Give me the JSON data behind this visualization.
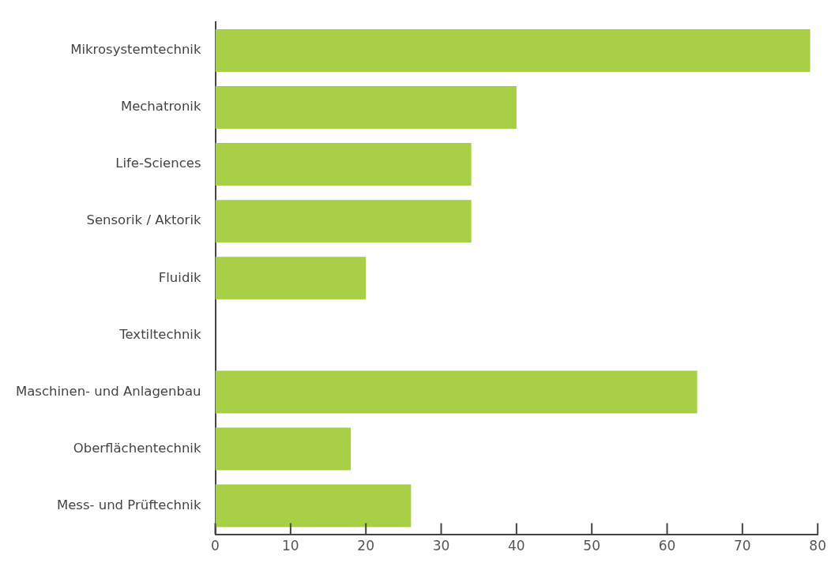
{
  "chart_data": {
    "type": "bar",
    "orientation": "horizontal",
    "categories": [
      "Mikrosystemtechnik",
      "Mechatronik",
      "Life-Sciences",
      "Sensorik / Aktorik",
      "Fluidik",
      "Textiltechnik",
      "Maschinen- und Anlagenbau",
      "Oberflächentechnik",
      "Mess- und Prüftechnik"
    ],
    "values": [
      79,
      40,
      34,
      34,
      20,
      0,
      64,
      18,
      26
    ],
    "color": "#a8cf45",
    "xlim": [
      0,
      80
    ],
    "xticks": [
      0,
      10,
      20,
      30,
      40,
      50,
      60,
      70,
      80
    ],
    "grid": false,
    "legend": false
  }
}
